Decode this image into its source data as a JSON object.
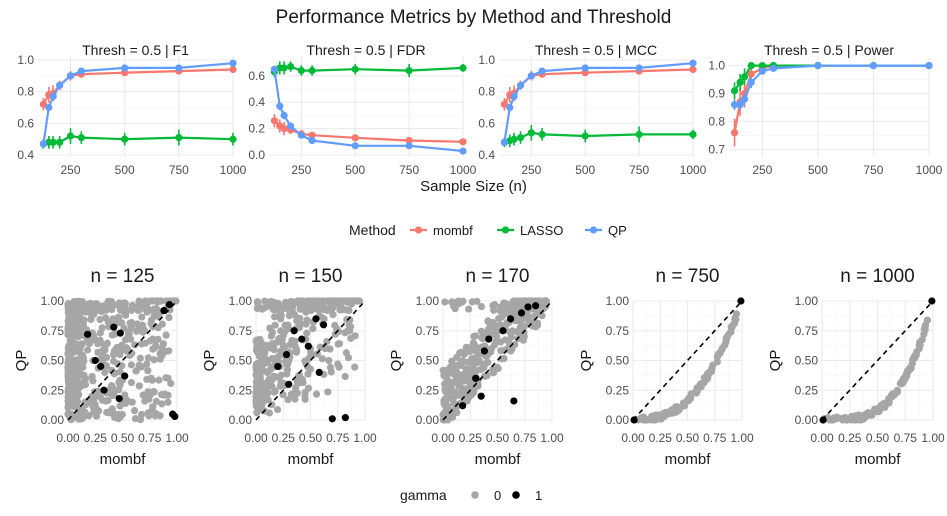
{
  "title": "Performance Metrics by Method and Threshold",
  "legend": {
    "title": "Method",
    "items": [
      {
        "label": "mombf",
        "color": "#F8766D"
      },
      {
        "label": "LASSO",
        "color": "#00BA38"
      },
      {
        "label": "QP",
        "color": "#619CFF"
      }
    ]
  },
  "gamma_legend": {
    "title": "gamma",
    "items": [
      {
        "label": "0",
        "color": "#A6A6A6"
      },
      {
        "label": "1",
        "color": "#000000"
      }
    ]
  },
  "chart_data": [
    {
      "type": "line",
      "title": "Thresh = 0.5 | F1",
      "xlabel": "Sample Size (n)",
      "ylabel": "",
      "xlim": [
        100,
        1000
      ],
      "ylim": [
        0.4,
        1.0
      ],
      "xticks": [
        250,
        500,
        750,
        1000
      ],
      "yticks": [
        0.4,
        0.6,
        0.8,
        1.0
      ],
      "ytick_labels": [
        "0.4",
        "0.6",
        "0.8",
        "1.0"
      ],
      "x": [
        125,
        150,
        170,
        200,
        250,
        300,
        500,
        750,
        1000
      ],
      "series": [
        {
          "name": "mombf",
          "values": [
            0.72,
            0.78,
            0.79,
            0.84,
            0.9,
            0.91,
            0.92,
            0.93,
            0.94
          ],
          "err": [
            0.04,
            0.05,
            0.05,
            0.03,
            0.03,
            0.02,
            0.02,
            0.02,
            0.02
          ]
        },
        {
          "name": "LASSO",
          "values": [
            0.47,
            0.48,
            0.48,
            0.48,
            0.52,
            0.51,
            0.5,
            0.51,
            0.5
          ],
          "err": [
            0.03,
            0.04,
            0.04,
            0.04,
            0.05,
            0.04,
            0.04,
            0.05,
            0.04
          ]
        },
        {
          "name": "QP",
          "values": [
            0.47,
            0.7,
            0.77,
            0.84,
            0.9,
            0.93,
            0.95,
            0.95,
            0.98
          ],
          "err": [
            0.02,
            0.02,
            0.02,
            0.02,
            0.01,
            0.01,
            0.01,
            0.01,
            0.01
          ]
        }
      ]
    },
    {
      "type": "line",
      "title": "Thresh = 0.5 | FDR",
      "xlabel": "Sample Size (n)",
      "ylabel": "",
      "xlim": [
        100,
        1000
      ],
      "ylim": [
        0.0,
        0.72
      ],
      "xticks": [
        250,
        500,
        750,
        1000
      ],
      "yticks": [
        0.0,
        0.2,
        0.4,
        0.6
      ],
      "ytick_labels": [
        "0.0",
        "0.2",
        "0.4",
        "0.6"
      ],
      "x": [
        125,
        150,
        170,
        200,
        250,
        300,
        500,
        750,
        1000
      ],
      "series": [
        {
          "name": "mombf",
          "values": [
            0.26,
            0.22,
            0.2,
            0.19,
            0.16,
            0.15,
            0.13,
            0.11,
            0.1
          ],
          "err": [
            0.05,
            0.05,
            0.05,
            0.03,
            0.03,
            0.02,
            0.02,
            0.02,
            0.02
          ]
        },
        {
          "name": "LASSO",
          "values": [
            0.63,
            0.66,
            0.66,
            0.67,
            0.64,
            0.64,
            0.65,
            0.64,
            0.66
          ],
          "err": [
            0.04,
            0.05,
            0.05,
            0.04,
            0.04,
            0.04,
            0.04,
            0.05,
            0.03
          ]
        },
        {
          "name": "QP",
          "values": [
            0.65,
            0.37,
            0.3,
            0.22,
            0.15,
            0.11,
            0.07,
            0.07,
            0.03
          ],
          "err": [
            0.02,
            0.03,
            0.03,
            0.02,
            0.02,
            0.02,
            0.01,
            0.01,
            0.01
          ]
        }
      ]
    },
    {
      "type": "line",
      "title": "Thresh = 0.5 | MCC",
      "xlabel": "Sample Size (n)",
      "ylabel": "",
      "xlim": [
        100,
        1000
      ],
      "ylim": [
        0.4,
        1.0
      ],
      "xticks": [
        250,
        500,
        750,
        1000
      ],
      "yticks": [
        0.4,
        0.6,
        0.8,
        1.0
      ],
      "ytick_labels": [
        "0.4",
        "0.6",
        "0.8",
        "1.0"
      ],
      "x": [
        125,
        150,
        170,
        200,
        250,
        300,
        500,
        750,
        1000
      ],
      "series": [
        {
          "name": "mombf",
          "values": [
            0.72,
            0.78,
            0.79,
            0.84,
            0.9,
            0.91,
            0.92,
            0.93,
            0.94
          ],
          "err": [
            0.04,
            0.05,
            0.05,
            0.03,
            0.03,
            0.02,
            0.02,
            0.02,
            0.02
          ]
        },
        {
          "name": "LASSO",
          "values": [
            0.48,
            0.49,
            0.5,
            0.51,
            0.54,
            0.53,
            0.52,
            0.53,
            0.53
          ],
          "err": [
            0.03,
            0.04,
            0.04,
            0.04,
            0.05,
            0.04,
            0.04,
            0.05,
            0.03
          ]
        },
        {
          "name": "QP",
          "values": [
            0.48,
            0.7,
            0.77,
            0.84,
            0.9,
            0.93,
            0.95,
            0.95,
            0.98
          ],
          "err": [
            0.02,
            0.02,
            0.02,
            0.02,
            0.01,
            0.01,
            0.01,
            0.01,
            0.01
          ]
        }
      ]
    },
    {
      "type": "line",
      "title": "Thresh = 0.5 | Power",
      "xlabel": "Sample Size (n)",
      "ylabel": "",
      "xlim": [
        100,
        1000
      ],
      "ylim": [
        0.68,
        1.02
      ],
      "xticks": [
        250,
        500,
        750,
        1000
      ],
      "yticks": [
        0.7,
        0.8,
        0.9,
        1.0
      ],
      "ytick_labels": [
        "0.7",
        "0.8",
        "0.9",
        "1.0"
      ],
      "x": [
        125,
        150,
        170,
        200,
        250,
        300,
        500,
        750,
        1000
      ],
      "series": [
        {
          "name": "mombf",
          "values": [
            0.76,
            0.87,
            0.9,
            0.97,
            0.99,
            1.0,
            1.0,
            1.0,
            1.0
          ],
          "err": [
            0.05,
            0.05,
            0.05,
            0.03,
            0.01,
            0.0,
            0.0,
            0.0,
            0.0
          ]
        },
        {
          "name": "LASSO",
          "values": [
            0.91,
            0.94,
            0.96,
            1.0,
            1.0,
            1.0,
            1.0,
            1.0,
            1.0
          ],
          "err": [
            0.03,
            0.03,
            0.03,
            0.01,
            0.0,
            0.0,
            0.0,
            0.0,
            0.0
          ]
        },
        {
          "name": "QP",
          "values": [
            0.86,
            0.86,
            0.88,
            0.94,
            0.98,
            0.99,
            1.0,
            1.0,
            1.0
          ],
          "err": [
            0.02,
            0.02,
            0.02,
            0.02,
            0.01,
            0.01,
            0.0,
            0.0,
            0.0
          ]
        }
      ]
    },
    {
      "type": "scatter",
      "title": "n = 125",
      "xlabel": "mombf",
      "ylabel": "QP",
      "xlim": [
        0,
        1
      ],
      "ylim": [
        0,
        1
      ],
      "xticks": [
        0,
        0.25,
        0.5,
        0.75,
        1.0
      ],
      "xtick_labels": [
        "0.00",
        "0.25",
        "0.50",
        "0.75",
        "1.00"
      ],
      "yticks": [
        0,
        0.25,
        0.5,
        0.75,
        1.0
      ],
      "ytick_labels": [
        "0.00",
        "0.25",
        "0.50",
        "0.75",
        "1.00"
      ],
      "pattern": "dense",
      "highlight": [
        [
          0.42,
          0.78
        ],
        [
          0.48,
          0.73
        ],
        [
          0.88,
          0.92
        ],
        [
          0.93,
          0.97
        ],
        [
          0.18,
          0.72
        ],
        [
          0.25,
          0.5
        ],
        [
          0.33,
          0.25
        ],
        [
          0.47,
          0.18
        ],
        [
          0.52,
          0.37
        ],
        [
          0.98,
          0.03
        ],
        [
          0.96,
          0.05
        ],
        [
          0.3,
          0.45
        ]
      ]
    },
    {
      "type": "scatter",
      "title": "n = 150",
      "xlabel": "mombf",
      "ylabel": "QP",
      "xlim": [
        0,
        1
      ],
      "ylim": [
        0,
        1
      ],
      "xticks": [
        0,
        0.25,
        0.5,
        0.75,
        1.0
      ],
      "xtick_labels": [
        "0.00",
        "0.25",
        "0.50",
        "0.75",
        "1.00"
      ],
      "yticks": [
        0,
        0.25,
        0.5,
        0.75,
        1.0
      ],
      "ytick_labels": [
        "0.00",
        "0.25",
        "0.50",
        "0.75",
        "1.00"
      ],
      "pattern": "medium",
      "highlight": [
        [
          0.55,
          0.85
        ],
        [
          0.35,
          0.75
        ],
        [
          0.42,
          0.68
        ],
        [
          0.62,
          0.8
        ],
        [
          0.28,
          0.55
        ],
        [
          0.2,
          0.45
        ],
        [
          0.58,
          0.4
        ],
        [
          0.7,
          0.01
        ],
        [
          0.82,
          0.02
        ],
        [
          0.48,
          0.62
        ],
        [
          0.3,
          0.3
        ]
      ]
    },
    {
      "type": "scatter",
      "title": "n = 170",
      "xlabel": "mombf",
      "ylabel": "QP",
      "xlim": [
        0,
        1
      ],
      "ylim": [
        0,
        1
      ],
      "xticks": [
        0,
        0.25,
        0.5,
        0.75,
        1.0
      ],
      "xtick_labels": [
        "0.00",
        "0.25",
        "0.50",
        "0.75",
        "1.00"
      ],
      "yticks": [
        0,
        0.25,
        0.5,
        0.75,
        1.0
      ],
      "ytick_labels": [
        "0.00",
        "0.25",
        "0.50",
        "0.75",
        "1.00"
      ],
      "pattern": "upper",
      "highlight": [
        [
          0.72,
          0.9
        ],
        [
          0.78,
          0.95
        ],
        [
          0.62,
          0.85
        ],
        [
          0.85,
          0.96
        ],
        [
          0.55,
          0.75
        ],
        [
          0.38,
          0.58
        ],
        [
          0.42,
          0.68
        ],
        [
          0.3,
          0.35
        ],
        [
          0.35,
          0.2
        ],
        [
          0.65,
          0.16
        ],
        [
          0.18,
          0.12
        ]
      ]
    },
    {
      "type": "scatter",
      "title": "n = 750",
      "xlabel": "mombf",
      "ylabel": "QP",
      "xlim": [
        0,
        1
      ],
      "ylim": [
        0,
        1
      ],
      "xticks": [
        0,
        0.25,
        0.5,
        0.75,
        1.0
      ],
      "xtick_labels": [
        "0.00",
        "0.25",
        "0.50",
        "0.75",
        "1.00"
      ],
      "yticks": [
        0,
        0.25,
        0.5,
        0.75,
        1.0
      ],
      "ytick_labels": [
        "0.00",
        "0.25",
        "0.50",
        "0.75",
        "1.00"
      ],
      "pattern": "curve",
      "curve_exp": 2.6,
      "highlight": [
        [
          0.01,
          0.0
        ],
        [
          0.99,
          1.0
        ]
      ]
    },
    {
      "type": "scatter",
      "title": "n = 1000",
      "xlabel": "mombf",
      "ylabel": "QP",
      "xlim": [
        0,
        1
      ],
      "ylim": [
        0,
        1
      ],
      "xticks": [
        0,
        0.25,
        0.5,
        0.75,
        1.0
      ],
      "xtick_labels": [
        "0.00",
        "0.25",
        "0.50",
        "0.75",
        "1.00"
      ],
      "yticks": [
        0,
        0.25,
        0.5,
        0.75,
        1.0
      ],
      "ytick_labels": [
        "0.00",
        "0.25",
        "0.50",
        "0.75",
        "1.00"
      ],
      "pattern": "curve",
      "curve_exp": 3.6,
      "highlight": [
        [
          0.01,
          0.0
        ],
        [
          0.99,
          1.0
        ]
      ]
    }
  ]
}
